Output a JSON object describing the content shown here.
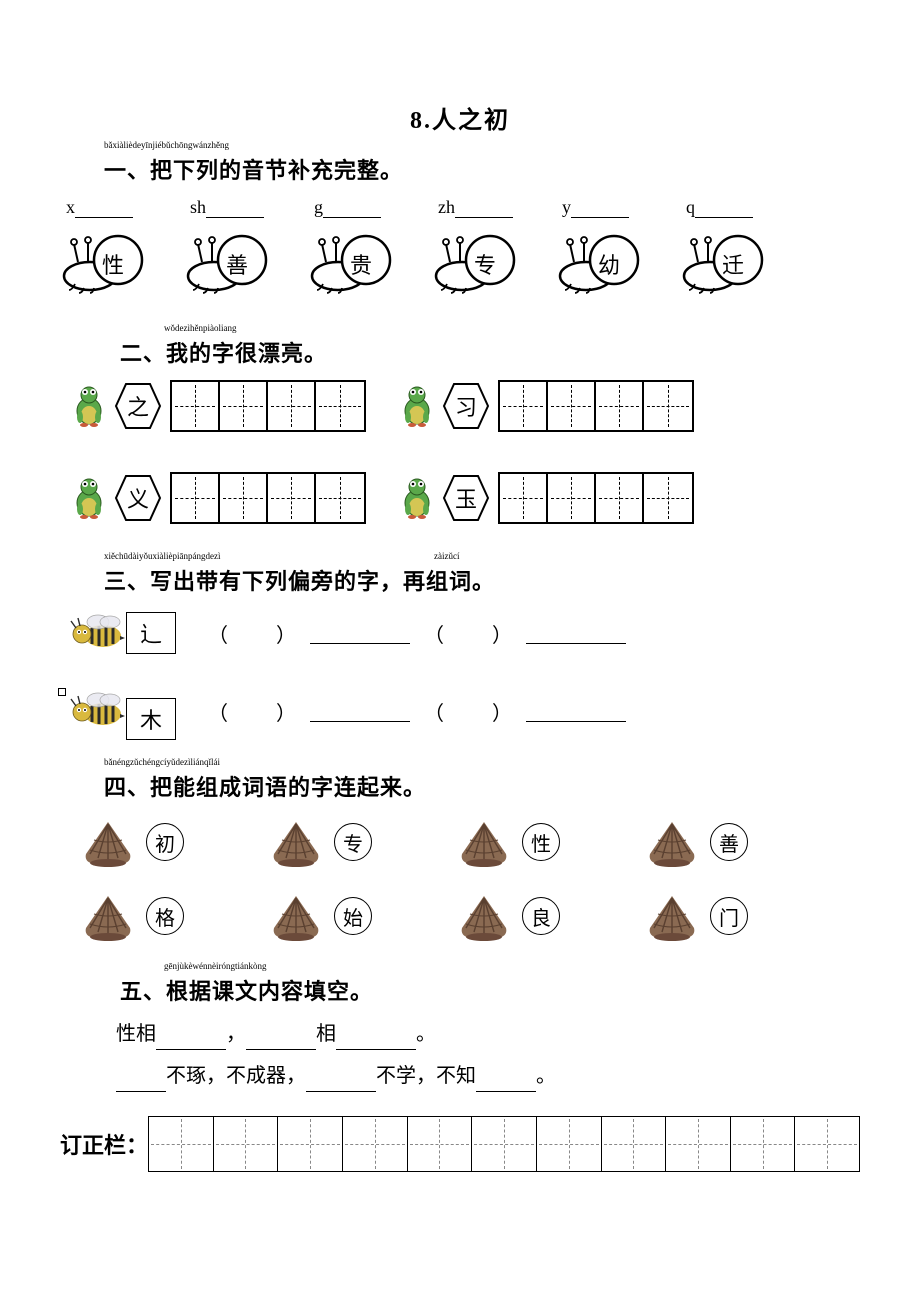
{
  "page": {
    "title": "8.人之初",
    "background_color": "#ffffff",
    "text_color": "#000000"
  },
  "section1": {
    "label": "一、把下列的音节补充完整。",
    "pinyin": "bǎxiàlièdeyīnjiébǔchōngwánzhěng",
    "items": [
      {
        "prefix": "x",
        "char": "性"
      },
      {
        "prefix": "sh",
        "char": "善"
      },
      {
        "prefix": "g",
        "char": "贵"
      },
      {
        "prefix": "zh",
        "char": "专"
      },
      {
        "prefix": "y",
        "char": "幼"
      },
      {
        "prefix": "q",
        "char": "迁"
      }
    ],
    "blank_width": 58
  },
  "section2": {
    "label": "二、我的字很漂亮。",
    "pinyin": "wǒdezìhěnpiàoliang",
    "rows": [
      [
        {
          "char": "之"
        },
        {
          "char": "习"
        }
      ],
      [
        {
          "char": "义"
        },
        {
          "char": "玉"
        }
      ]
    ],
    "boxes_per_group": 4
  },
  "section3": {
    "label": "三、写出带有下列偏旁的字，再组词。",
    "pinyin1": "xiěchūdàiyǒuxiàlièpiānpángdezì",
    "pinyin2": "zàizǔcí",
    "radicals": [
      "辶",
      "木"
    ]
  },
  "section4": {
    "label": "四、把能组成词语的字连起来。",
    "pinyin": "bǎnéngzǔchéngcíyǔdezìliánqǐlái",
    "row1": [
      "初",
      "专",
      "性",
      "善"
    ],
    "row2": [
      "格",
      "始",
      "良",
      "门"
    ]
  },
  "section5": {
    "label": "五、根据课文内容填空。",
    "pinyin": "gēnjùkèwénnèiróngtiánkòng",
    "line1_parts": [
      "性相",
      "，",
      "相",
      "。"
    ],
    "line1_blanks": [
      70,
      70,
      80
    ],
    "line2_parts": [
      "不琢，不成器，",
      "不学，不知",
      "。"
    ],
    "line2_blanks_pre": 50,
    "line2_blanks": [
      70,
      60
    ]
  },
  "correction": {
    "label": "订正栏：",
    "box_count": 11
  },
  "colors": {
    "shell_light": "#c9a882",
    "shell_dark": "#6b4a3a",
    "frog_green": "#5aa84a",
    "frog_yellow": "#d4c654",
    "bee_yellow": "#d9b93e",
    "bee_black": "#2a2a2a"
  }
}
